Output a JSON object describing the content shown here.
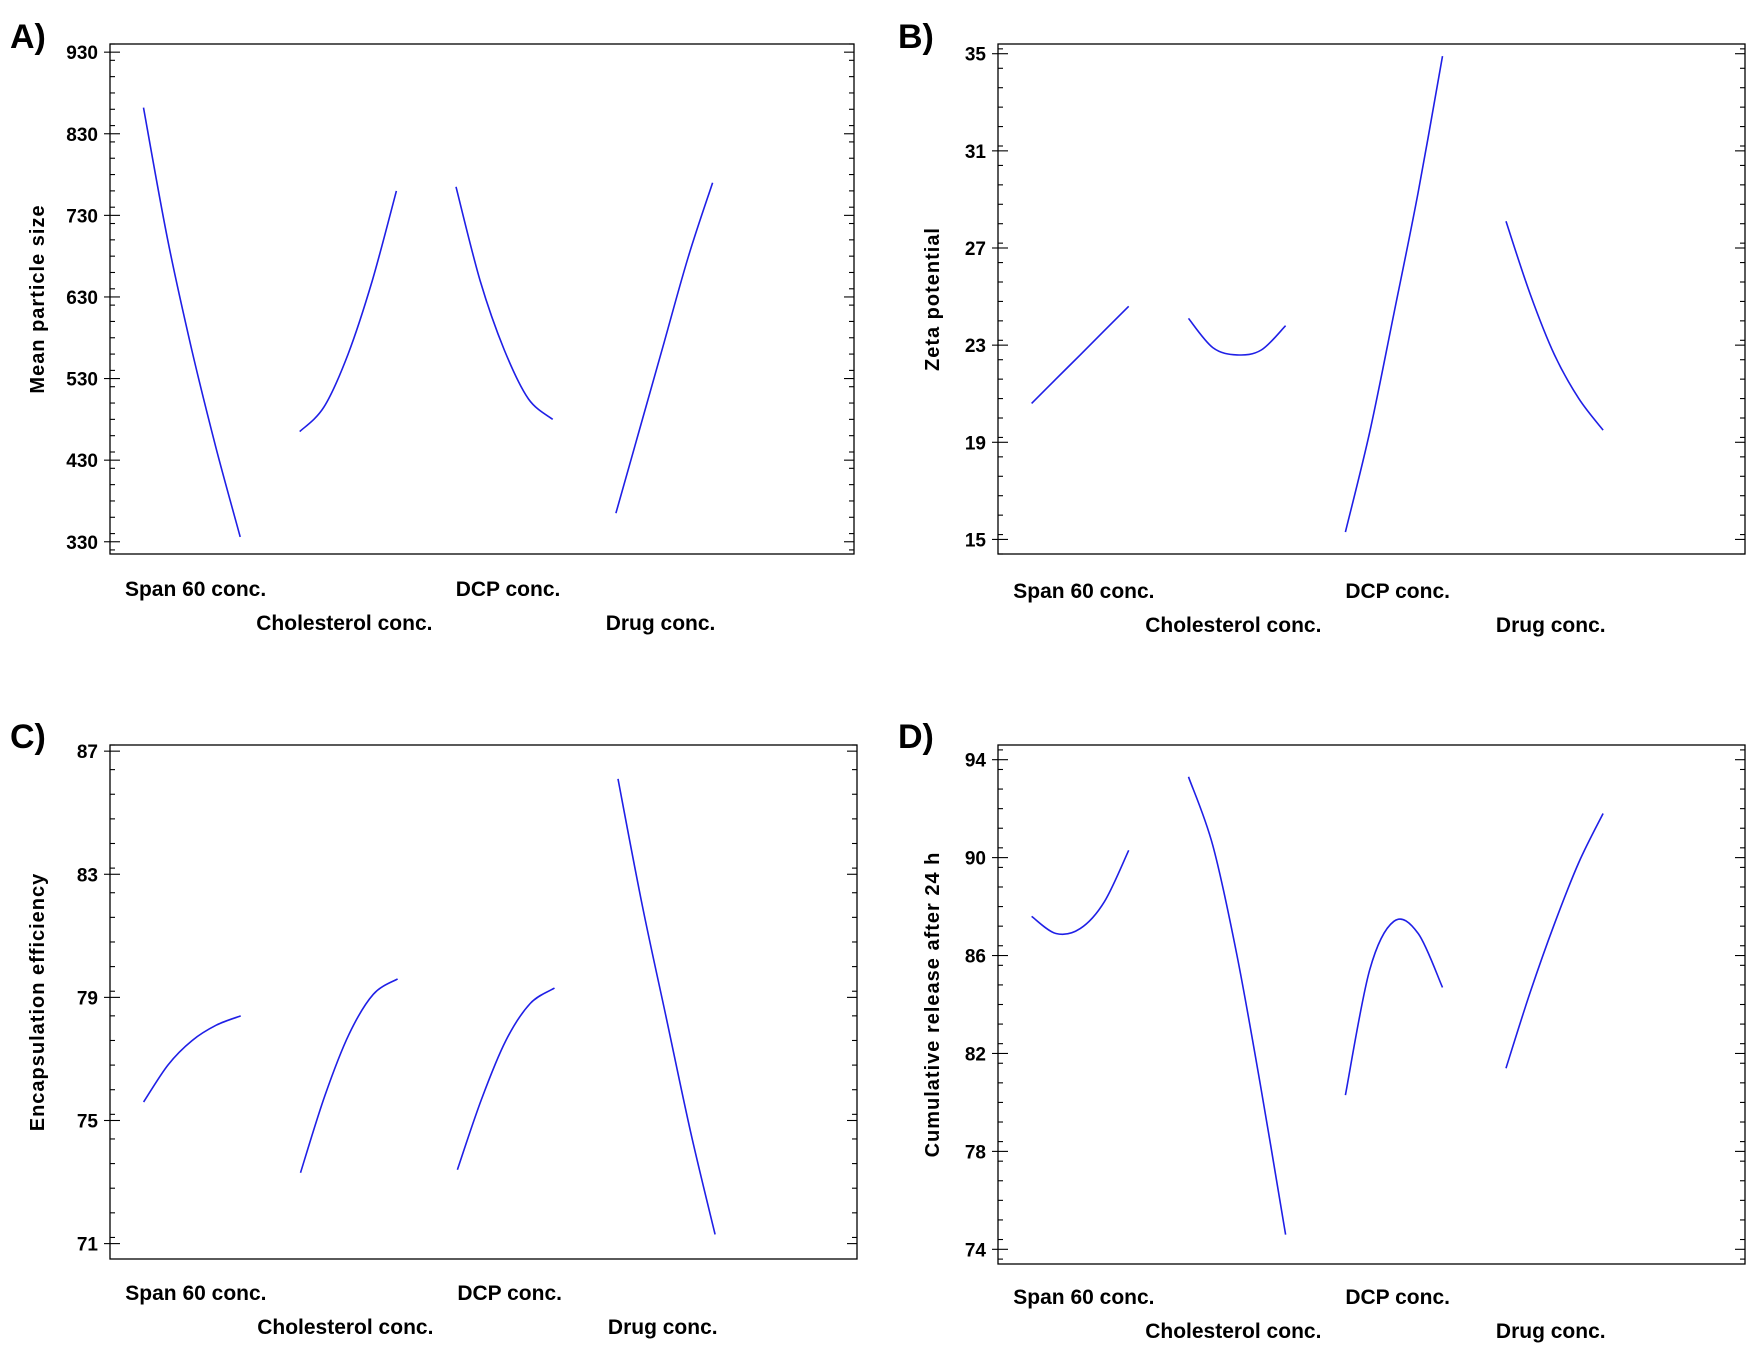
{
  "figure": {
    "line_color": "#1f1fe6"
  },
  "chart_data": [
    {
      "id": "A",
      "panel_label": "A)",
      "type": "line",
      "title": "",
      "xlabel": "",
      "ylabel": "Mean particle size",
      "ylim": [
        315,
        940
      ],
      "yticks": [
        330,
        430,
        530,
        630,
        730,
        830,
        930
      ],
      "factors": [
        "Span 60 conc.",
        "Cholesterol conc.",
        "DCP conc.",
        "Drug conc."
      ],
      "series": [
        {
          "name": "Span 60 conc.",
          "x": [
            0,
            0.25,
            0.5,
            0.75,
            1
          ],
          "values": [
            862,
            700,
            565,
            445,
            336
          ]
        },
        {
          "name": "Cholesterol conc.",
          "x": [
            0,
            0.25,
            0.5,
            0.75,
            1
          ],
          "values": [
            465,
            495,
            560,
            650,
            760
          ]
        },
        {
          "name": "DCP conc.",
          "x": [
            0,
            0.25,
            0.5,
            0.75,
            1
          ],
          "values": [
            765,
            650,
            565,
            505,
            480
          ]
        },
        {
          "name": "Drug conc.",
          "x": [
            0,
            0.25,
            0.5,
            0.75,
            1
          ],
          "values": [
            365,
            470,
            575,
            680,
            770
          ]
        }
      ]
    },
    {
      "id": "B",
      "panel_label": "B)",
      "type": "line",
      "title": "",
      "xlabel": "",
      "ylabel": "Zeta potential",
      "ylim": [
        14.4,
        35.4
      ],
      "yticks": [
        15,
        19,
        23,
        27,
        31,
        35
      ],
      "factors": [
        "Span 60 conc.",
        "Cholesterol conc.",
        "DCP conc.",
        "Drug conc."
      ],
      "series": [
        {
          "name": "Span 60 conc.",
          "x": [
            0,
            0.25,
            0.5,
            0.75,
            1
          ],
          "values": [
            20.6,
            21.6,
            22.6,
            23.6,
            24.6
          ]
        },
        {
          "name": "Cholesterol conc.",
          "x": [
            0,
            0.25,
            0.5,
            0.75,
            1
          ],
          "values": [
            24.1,
            22.9,
            22.6,
            22.8,
            23.8
          ]
        },
        {
          "name": "DCP conc.",
          "x": [
            0,
            0.25,
            0.5,
            0.75,
            1
          ],
          "values": [
            15.3,
            19.4,
            24.3,
            29.3,
            34.9
          ]
        },
        {
          "name": "Drug conc.",
          "x": [
            0,
            0.25,
            0.5,
            0.75,
            1
          ],
          "values": [
            28.1,
            25.1,
            22.6,
            20.8,
            19.5
          ]
        }
      ]
    },
    {
      "id": "C",
      "panel_label": "C)",
      "type": "line",
      "title": "",
      "xlabel": "",
      "ylabel": "Encapsulation efficiency",
      "ylim": [
        70.5,
        87.2
      ],
      "yticks": [
        71,
        75,
        79,
        83,
        87
      ],
      "factors": [
        "Span 60 conc.",
        "Cholesterol conc.",
        "DCP conc.",
        "Drug conc."
      ],
      "series": [
        {
          "name": "Span 60 conc.",
          "x": [
            0,
            0.25,
            0.5,
            0.75,
            1
          ],
          "values": [
            75.6,
            76.8,
            77.6,
            78.1,
            78.4
          ]
        },
        {
          "name": "Cholesterol conc.",
          "x": [
            0,
            0.25,
            0.5,
            0.75,
            1
          ],
          "values": [
            73.3,
            75.8,
            77.8,
            79.1,
            79.6
          ]
        },
        {
          "name": "DCP conc.",
          "x": [
            0,
            0.25,
            0.5,
            0.75,
            1
          ],
          "values": [
            73.4,
            75.7,
            77.6,
            78.8,
            79.3
          ]
        },
        {
          "name": "Drug conc.",
          "x": [
            0,
            0.25,
            0.5,
            0.75,
            1
          ],
          "values": [
            86.1,
            82.0,
            78.3,
            74.6,
            71.3
          ]
        }
      ]
    },
    {
      "id": "D",
      "panel_label": "D)",
      "type": "line",
      "title": "",
      "xlabel": "",
      "ylabel": "Cumulative release after 24 h",
      "ylim": [
        73.4,
        94.6
      ],
      "yticks": [
        74,
        78,
        82,
        86,
        90,
        94
      ],
      "factors": [
        "Span 60 conc.",
        "Cholesterol conc.",
        "DCP conc.",
        "Drug conc."
      ],
      "series": [
        {
          "name": "Span 60 conc.",
          "x": [
            0,
            0.25,
            0.5,
            0.75,
            1
          ],
          "values": [
            87.6,
            86.9,
            87.1,
            88.2,
            90.3
          ]
        },
        {
          "name": "Cholesterol conc.",
          "x": [
            0,
            0.25,
            0.5,
            0.75,
            1
          ],
          "values": [
            93.3,
            90.5,
            86.0,
            80.5,
            74.6
          ]
        },
        {
          "name": "DCP conc.",
          "x": [
            0,
            0.25,
            0.5,
            0.75,
            1
          ],
          "values": [
            80.3,
            85.4,
            87.4,
            86.9,
            84.7
          ]
        },
        {
          "name": "Drug conc.",
          "x": [
            0,
            0.25,
            0.5,
            0.75,
            1
          ],
          "values": [
            81.4,
            84.5,
            87.3,
            89.8,
            91.8
          ]
        }
      ]
    }
  ]
}
